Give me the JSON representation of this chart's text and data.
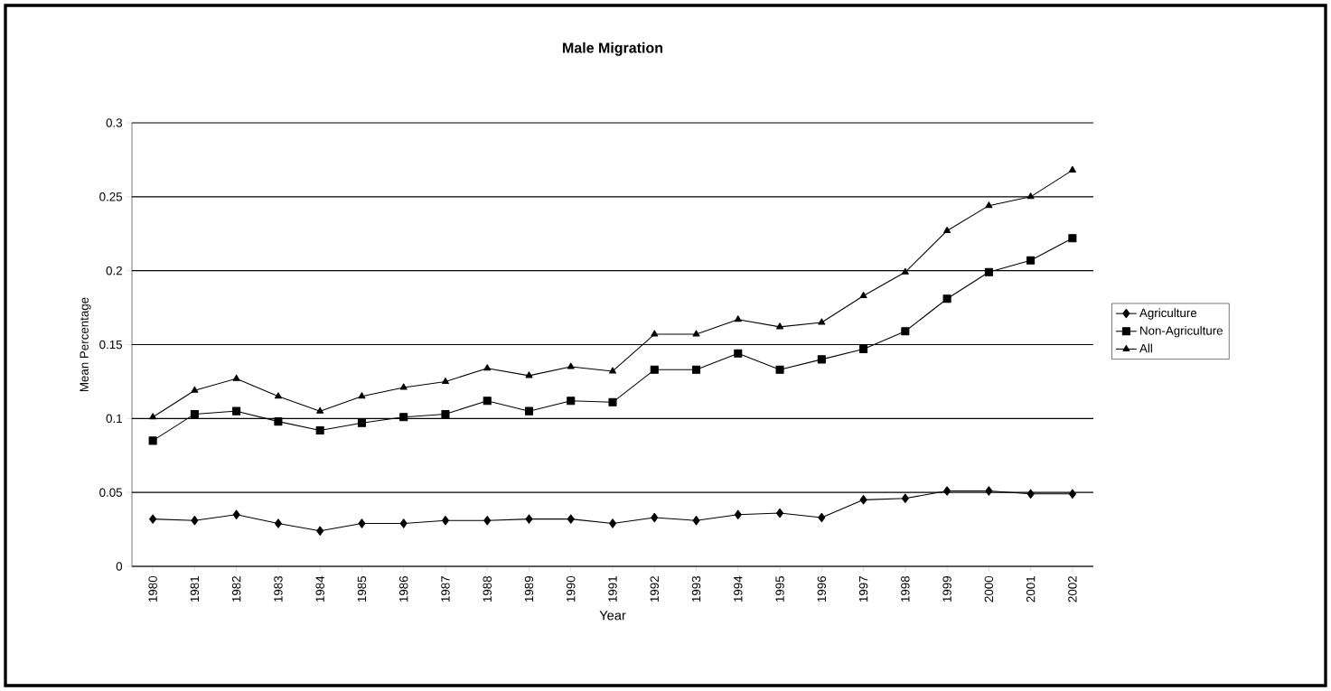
{
  "chart_data": {
    "type": "line",
    "title": "Male Migration",
    "xlabel": "Year",
    "ylabel": "Mean Percentage",
    "categories": [
      "1980",
      "1981",
      "1982",
      "1983",
      "1984",
      "1985",
      "1986",
      "1987",
      "1988",
      "1989",
      "1990",
      "1991",
      "1992",
      "1993",
      "1994",
      "1995",
      "1996",
      "1997",
      "1998",
      "1999",
      "2000",
      "2001",
      "2002"
    ],
    "series": [
      {
        "name": "Agriculture",
        "color": "#000000",
        "marker": "diamond",
        "values": [
          0.032,
          0.031,
          0.035,
          0.029,
          0.024,
          0.029,
          0.029,
          0.031,
          0.031,
          0.032,
          0.032,
          0.029,
          0.033,
          0.031,
          0.035,
          0.036,
          0.033,
          0.045,
          0.046,
          0.051,
          0.051,
          0.049,
          0.049
        ]
      },
      {
        "name": "Non-Agriculture",
        "color": "#000000",
        "marker": "square",
        "values": [
          0.085,
          0.103,
          0.105,
          0.098,
          0.092,
          0.097,
          0.101,
          0.103,
          0.112,
          0.105,
          0.112,
          0.111,
          0.133,
          0.133,
          0.144,
          0.133,
          0.14,
          0.147,
          0.159,
          0.181,
          0.199,
          0.207,
          0.222
        ]
      },
      {
        "name": "All",
        "color": "#000000",
        "marker": "triangle",
        "values": [
          0.101,
          0.119,
          0.127,
          0.115,
          0.105,
          0.115,
          0.121,
          0.125,
          0.134,
          0.129,
          0.135,
          0.132,
          0.157,
          0.157,
          0.167,
          0.162,
          0.165,
          0.183,
          0.199,
          0.227,
          0.244,
          0.25,
          0.268
        ]
      }
    ],
    "ylim": [
      0,
      0.3
    ],
    "yticks": [
      0,
      0.05,
      0.1,
      0.15,
      0.2,
      0.25,
      0.3
    ],
    "grid": "y",
    "legend": "right",
    "line_style": "solid"
  }
}
